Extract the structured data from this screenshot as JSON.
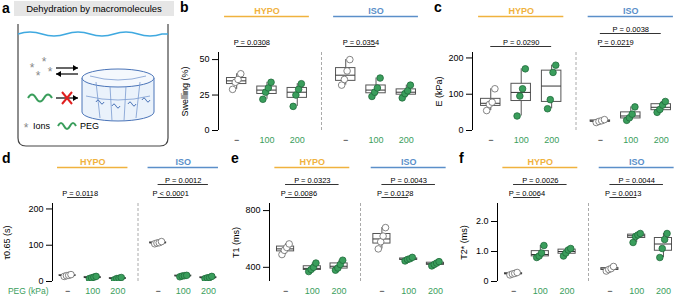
{
  "diagram": {
    "panel": "a",
    "title": "Dehydration by macromolecules",
    "legend": [
      {
        "symbol": "*",
        "label": "Ions"
      },
      {
        "label": "PEG"
      }
    ]
  },
  "chart_data": [
    {
      "type": "box",
      "panel": "b",
      "ylabel": "Swelling (%)",
      "ylim": [
        0,
        55
      ],
      "yticks": [
        0,
        25,
        50
      ],
      "categories": [
        "−",
        "100",
        "200"
      ],
      "colors": [
        "#ffffff",
        "#3a9e5c",
        "#3a9e5c"
      ],
      "groups": [
        {
          "name": "HYPO",
          "color": "#f0b23e",
          "values": [
            [
              29,
              34,
              36,
              40
            ],
            [
              22,
              27,
              30,
              34
            ],
            [
              17,
              25,
              29,
              33
            ]
          ]
        },
        {
          "name": "ISO",
          "color": "#5b8fc9",
          "values": [
            [
              32,
              36,
              42,
              50
            ],
            [
              24,
              27,
              30,
              37
            ],
            [
              23,
              26,
              28,
              32
            ]
          ]
        }
      ],
      "comparisons": [
        {
          "group": "HYPO",
          "from": "−",
          "to": "100",
          "label": "P = 0.0308"
        },
        {
          "group": "ISO",
          "from": "−",
          "to": "100",
          "label": "P = 0.0354"
        }
      ]
    },
    {
      "type": "box",
      "panel": "c",
      "ylabel": "E (kPa)",
      "ylim": [
        0,
        215
      ],
      "yticks": [
        0,
        100,
        200
      ],
      "categories": [
        "−",
        "100",
        "200"
      ],
      "colors": [
        "#ffffff",
        "#3a9e5c",
        "#3a9e5c"
      ],
      "groups": [
        {
          "name": "HYPO",
          "color": "#f0b23e",
          "values": [
            [
              55,
              72,
              78,
              115
            ],
            [
              40,
              95,
              115,
              170
            ],
            [
              60,
              85,
              160,
              180
            ]
          ]
        },
        {
          "name": "ISO",
          "color": "#5b8fc9",
          "values": [
            [
              22,
              25,
              27,
              30
            ],
            [
              28,
              35,
              45,
              65
            ],
            [
              50,
              58,
              70,
              80
            ]
          ]
        }
      ],
      "comparisons": [
        {
          "group": "HYPO",
          "from": "−",
          "to": "200",
          "label": "P = 0.0290"
        },
        {
          "group": "ISO",
          "from": "−",
          "to": "100",
          "label": "P = 0.0219"
        },
        {
          "group": "ISO",
          "from": "−",
          "to": "200",
          "label": "P = 0.0038"
        }
      ]
    },
    {
      "type": "box",
      "panel": "d",
      "ylabel": "τ0.65 (s)",
      "xlabel": "PEG (kPa)",
      "ylim": [
        0,
        215
      ],
      "yticks": [
        0,
        100,
        200
      ],
      "categories": [
        "−",
        "100",
        "200"
      ],
      "colors": [
        "#ffffff",
        "#3a9e5c",
        "#3a9e5c"
      ],
      "groups": [
        {
          "name": "HYPO",
          "color": "#f0b23e",
          "values": [
            [
              14,
              16,
              17,
              19
            ],
            [
              8,
              10,
              12,
              14
            ],
            [
              5,
              8,
              9,
              11
            ]
          ]
        },
        {
          "name": "ISO",
          "color": "#5b8fc9",
          "values": [
            [
              104,
              106,
              107,
              110
            ],
            [
              13,
              15,
              16,
              17
            ],
            [
              8,
              10,
              11,
              14
            ]
          ]
        }
      ],
      "comparisons": [
        {
          "group": "HYPO",
          "from": "−",
          "to": "100",
          "label": "P = 0.0118"
        },
        {
          "group": "ISO",
          "from": "−",
          "to": "100",
          "label": "P < 0.0001"
        },
        {
          "group": "ISO",
          "from": "−",
          "to": "200",
          "label": "P = 0.0012"
        }
      ]
    },
    {
      "type": "box",
      "panel": "e",
      "ylabel": "T1 (ms)",
      "ylim": [
        300,
        850
      ],
      "yticks": [
        400,
        800
      ],
      "categories": [
        "−",
        "100",
        "200"
      ],
      "colors": [
        "#ffffff",
        "#3a9e5c",
        "#3a9e5c"
      ],
      "groups": [
        {
          "name": "HYPO",
          "color": "#f0b23e",
          "values": [
            [
              490,
              520,
              540,
              565
            ],
            [
              370,
              385,
              400,
              430
            ],
            [
              380,
              395,
              420,
              450
            ]
          ]
        },
        {
          "name": "ISO",
          "color": "#5b8fc9",
          "values": [
            [
              530,
              580,
              620,
              680
            ],
            [
              445,
              455,
              460,
              470
            ],
            [
              410,
              420,
              430,
              440
            ]
          ]
        }
      ],
      "comparisons": [
        {
          "group": "HYPO",
          "from": "−",
          "to": "100",
          "label": "P = 0.0086"
        },
        {
          "group": "HYPO",
          "from": "−",
          "to": "200",
          "label": "P = 0.0323"
        },
        {
          "group": "ISO",
          "from": "−",
          "to": "100",
          "label": "P = 0.0128"
        },
        {
          "group": "ISO",
          "from": "−",
          "to": "200",
          "label": "P = 0.0043"
        }
      ]
    },
    {
      "type": "box",
      "panel": "f",
      "ylabel": "T2* (ms)",
      "ylim": [
        0,
        2.6
      ],
      "yticks": [
        0,
        {
          "value": 1,
          "label": "1.0"
        },
        {
          "value": 2,
          "label": "2.0"
        }
      ],
      "categories": [
        "−",
        "100",
        "200"
      ],
      "colors": [
        "#ffffff",
        "#3a9e5c",
        "#3a9e5c"
      ],
      "groups": [
        {
          "name": "HYPO",
          "color": "#f0b23e",
          "values": [
            [
              0.22,
              0.25,
              0.27,
              0.3
            ],
            [
              0.8,
              0.85,
              0.95,
              1.2
            ],
            [
              0.85,
              0.95,
              1.05,
              1.1
            ]
          ]
        },
        {
          "name": "ISO",
          "color": "#5b8fc9",
          "values": [
            [
              0.35,
              0.4,
              0.43,
              0.5
            ],
            [
              1.3,
              1.5,
              1.55,
              1.6
            ],
            [
              0.8,
              1.1,
              1.4,
              1.6
            ]
          ]
        }
      ],
      "comparisons": [
        {
          "group": "HYPO",
          "from": "−",
          "to": "100",
          "label": "P = 0.0064"
        },
        {
          "group": "HYPO",
          "from": "−",
          "to": "200",
          "label": "P = 0.0026"
        },
        {
          "group": "ISO",
          "from": "−",
          "to": "100",
          "label": "P = 0.0013"
        },
        {
          "group": "ISO",
          "from": "−",
          "to": "200",
          "label": "P = 0.0044"
        }
      ]
    }
  ]
}
